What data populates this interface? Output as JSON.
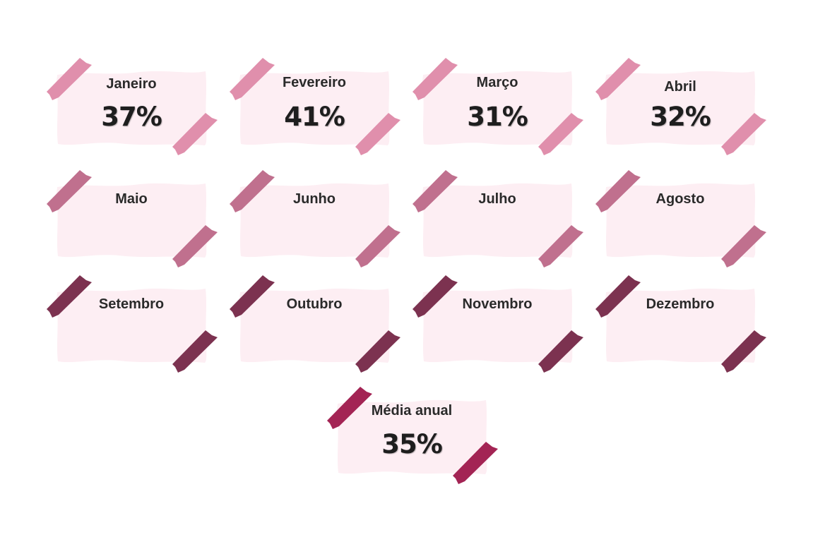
{
  "colors": {
    "paper": "#fdeef3",
    "tape_row1": "#e08fac",
    "tape_row2": "#c0708e",
    "tape_row3": "#7c3250",
    "tape_annual": "#a32454"
  },
  "months": [
    {
      "name": "Janeiro",
      "value": "37%"
    },
    {
      "name": "Fevereiro",
      "value": "41%"
    },
    {
      "name": "Março",
      "value": "31%"
    },
    {
      "name": "Abril",
      "value": "32%"
    },
    {
      "name": "Maio",
      "value": ""
    },
    {
      "name": "Junho",
      "value": ""
    },
    {
      "name": "Julho",
      "value": ""
    },
    {
      "name": "Agosto",
      "value": ""
    },
    {
      "name": "Setembro",
      "value": ""
    },
    {
      "name": "Outubro",
      "value": ""
    },
    {
      "name": "Novembro",
      "value": ""
    },
    {
      "name": "Dezembro",
      "value": ""
    }
  ],
  "annual": {
    "name": "Média anual",
    "value": "35%"
  }
}
